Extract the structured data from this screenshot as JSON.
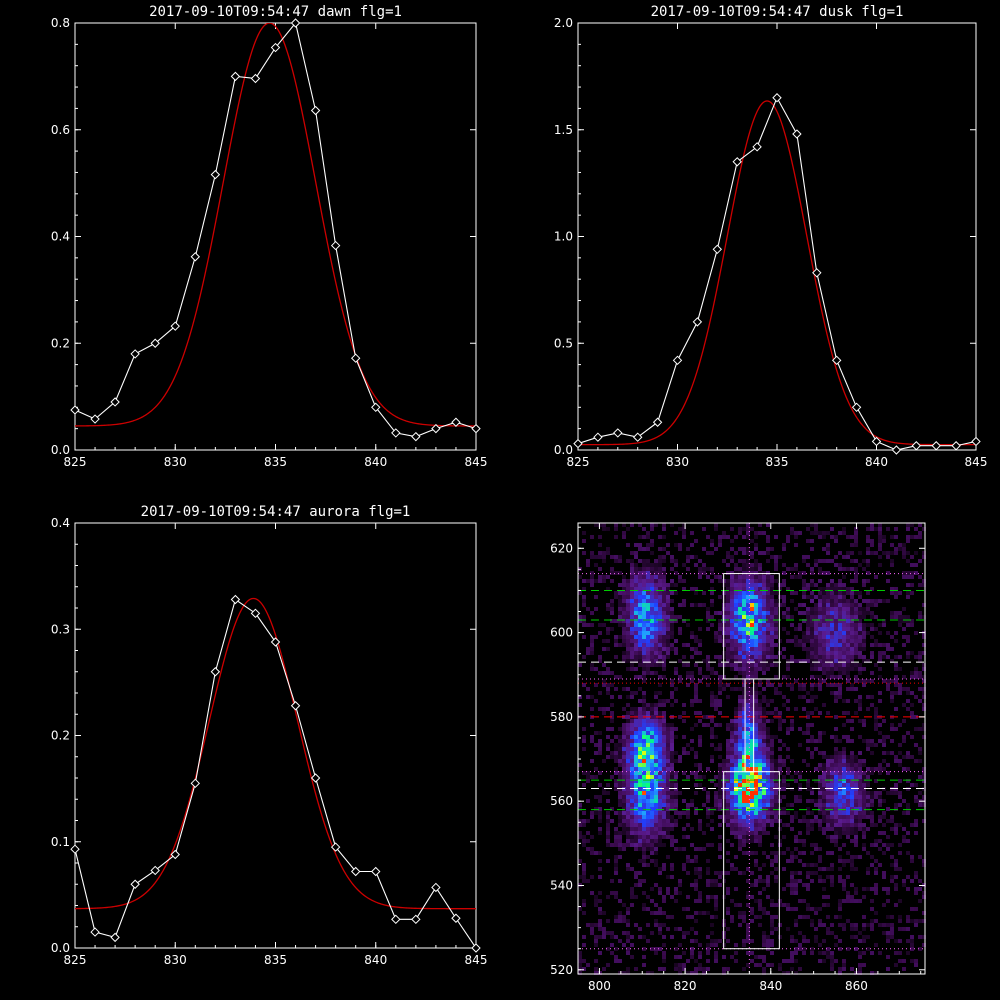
{
  "chart_data": [
    {
      "type": "line",
      "title": "2017-09-10T09:54:47 dawn flg=1",
      "xlim": [
        825,
        845
      ],
      "ylim": [
        0,
        0.8
      ],
      "x_ticks": [
        825,
        830,
        835,
        840,
        845
      ],
      "y_ticks": [
        0.0,
        0.2,
        0.4,
        0.6,
        0.8
      ],
      "x_tick_labels": [
        "825",
        "830",
        "835",
        "840",
        "845"
      ],
      "y_tick_labels": [
        "0.0",
        "0.2",
        "0.4",
        "0.6",
        "0.8"
      ],
      "series": [
        {
          "color": "#ffffff",
          "marker": "diamond",
          "x": [
            825,
            826,
            827,
            828,
            829,
            830,
            831,
            832,
            833,
            834,
            835,
            836,
            837,
            838,
            839,
            840,
            841,
            842,
            843,
            844,
            845
          ],
          "y": [
            0.075,
            0.058,
            0.09,
            0.18,
            0.2,
            0.232,
            0.362,
            0.516,
            0.7,
            0.696,
            0.754,
            0.8,
            0.636,
            0.383,
            0.172,
            0.08,
            0.032,
            0.025,
            0.04,
            0.052,
            0.04
          ]
        },
        {
          "color": "#cc0000",
          "fit": "gaussian",
          "center": 834.7,
          "sigma": 2.3,
          "amplitude": 0.755,
          "baseline": 0.045,
          "x_range": [
            825,
            845
          ]
        }
      ]
    },
    {
      "type": "line",
      "title": "2017-09-10T09:54:47 dusk flg=1",
      "xlim": [
        825,
        845
      ],
      "ylim": [
        0,
        2.0
      ],
      "x_ticks": [
        825,
        830,
        835,
        840,
        845
      ],
      "y_ticks": [
        0.0,
        0.5,
        1.0,
        1.5,
        2.0
      ],
      "x_tick_labels": [
        "825",
        "830",
        "835",
        "840",
        "845"
      ],
      "y_tick_labels": [
        "0.0",
        "0.5",
        "1.0",
        "1.5",
        "2.0"
      ],
      "series": [
        {
          "color": "#ffffff",
          "marker": "diamond",
          "x": [
            825,
            826,
            827,
            828,
            829,
            830,
            831,
            832,
            833,
            834,
            835,
            836,
            837,
            838,
            839,
            840,
            841,
            842,
            843,
            844,
            845
          ],
          "y": [
            0.03,
            0.06,
            0.08,
            0.06,
            0.13,
            0.42,
            0.6,
            0.94,
            1.35,
            1.42,
            1.65,
            1.48,
            0.83,
            0.42,
            0.2,
            0.04,
            0.0,
            0.02,
            0.02,
            0.02,
            0.04
          ]
        },
        {
          "color": "#cc0000",
          "fit": "gaussian",
          "center": 834.5,
          "sigma": 2.0,
          "amplitude": 1.61,
          "baseline": 0.025,
          "x_range": [
            825,
            845
          ]
        }
      ]
    },
    {
      "type": "line",
      "title": "2017-09-10T09:54:47 aurora flg=1",
      "xlim": [
        825,
        845
      ],
      "ylim": [
        0,
        0.4
      ],
      "x_ticks": [
        825,
        830,
        835,
        840,
        845
      ],
      "y_ticks": [
        0.0,
        0.1,
        0.2,
        0.3,
        0.4
      ],
      "x_tick_labels": [
        "825",
        "830",
        "835",
        "840",
        "845"
      ],
      "y_tick_labels": [
        "0.0",
        "0.1",
        "0.2",
        "0.3",
        "0.4"
      ],
      "series": [
        {
          "color": "#ffffff",
          "marker": "diamond",
          "x": [
            825,
            826,
            827,
            828,
            829,
            830,
            831,
            832,
            833,
            834,
            835,
            836,
            837,
            838,
            839,
            840,
            841,
            842,
            843,
            844,
            845
          ],
          "y": [
            0.093,
            0.015,
            0.01,
            0.06,
            0.073,
            0.088,
            0.155,
            0.26,
            0.328,
            0.315,
            0.288,
            0.228,
            0.16,
            0.095,
            0.072,
            0.072,
            0.027,
            0.027,
            0.057,
            0.028,
            0.0
          ]
        },
        {
          "color": "#cc0000",
          "fit": "gaussian",
          "center": 833.9,
          "sigma": 2.2,
          "amplitude": 0.292,
          "baseline": 0.037,
          "x_range": [
            825,
            845
          ]
        }
      ]
    },
    {
      "type": "heatmap",
      "title": "",
      "xlim": [
        795,
        876
      ],
      "ylim": [
        519,
        626
      ],
      "x_ticks": [
        800,
        820,
        840,
        860
      ],
      "y_ticks": [
        520,
        540,
        560,
        580,
        600,
        620
      ],
      "x_tick_labels": [
        "800",
        "820",
        "840",
        "860"
      ],
      "y_tick_labels": [
        "520",
        "540",
        "560",
        "580",
        "600",
        "620"
      ],
      "colormap": [
        "#000000",
        "#3a0a4e",
        "#5a1a8c",
        "#2040ff",
        "#20a0ff",
        "#00ff80",
        "#ffff00",
        "#ff3000"
      ],
      "blobs": [
        {
          "x": 811,
          "y": 604,
          "sx": 3,
          "sy": 6,
          "peak": 0.55
        },
        {
          "x": 811,
          "y": 563,
          "sx": 3,
          "sy": 7,
          "peak": 0.65
        },
        {
          "x": 811,
          "y": 574,
          "sx": 3,
          "sy": 4,
          "peak": 0.45
        },
        {
          "x": 835,
          "y": 603,
          "sx": 3,
          "sy": 6,
          "peak": 0.7
        },
        {
          "x": 835,
          "y": 563,
          "sx": 3,
          "sy": 5,
          "peak": 1.0
        },
        {
          "x": 835,
          "y": 574,
          "sx": 2,
          "sy": 6,
          "peak": 0.5
        },
        {
          "x": 857,
          "y": 562,
          "sx": 3,
          "sy": 5,
          "peak": 0.42
        },
        {
          "x": 855,
          "y": 600,
          "sx": 4,
          "sy": 6,
          "peak": 0.28
        }
      ],
      "boxes": [
        {
          "x0": 829,
          "x1": 842,
          "y0": 589,
          "y1": 614,
          "color": "#ffffff"
        },
        {
          "x0": 829,
          "x1": 842,
          "y0": 525,
          "y1": 567,
          "color": "#ffffff"
        },
        {
          "x0": 834,
          "x1": 836,
          "y0": 567,
          "y1": 589,
          "color": "#ffffff"
        }
      ],
      "hlines": [
        {
          "y": 614,
          "color": "#ff66ff",
          "style": "dotted"
        },
        {
          "y": 610,
          "color": "#00cc00",
          "style": "dashed"
        },
        {
          "y": 603,
          "color": "#00cc00",
          "style": "dashed"
        },
        {
          "y": 593,
          "color": "#ffffff",
          "style": "dashed"
        },
        {
          "y": 589,
          "color": "#ff66ff",
          "style": "dotted"
        },
        {
          "y": 588,
          "color": "#ff0000",
          "style": "dotted"
        },
        {
          "y": 580,
          "color": "#ff0000",
          "style": "dashed"
        },
        {
          "y": 567,
          "color": "#ff66ff",
          "style": "dotted"
        },
        {
          "y": 565,
          "color": "#00cc00",
          "style": "dashed"
        },
        {
          "y": 563,
          "color": "#ffffff",
          "style": "dashed"
        },
        {
          "y": 558,
          "color": "#00cc00",
          "style": "dashed"
        },
        {
          "y": 525,
          "color": "#ff66ff",
          "style": "dotted"
        }
      ],
      "vlines": [
        {
          "x": 835,
          "color": "#ff66ff",
          "style": "dotted"
        }
      ]
    }
  ]
}
